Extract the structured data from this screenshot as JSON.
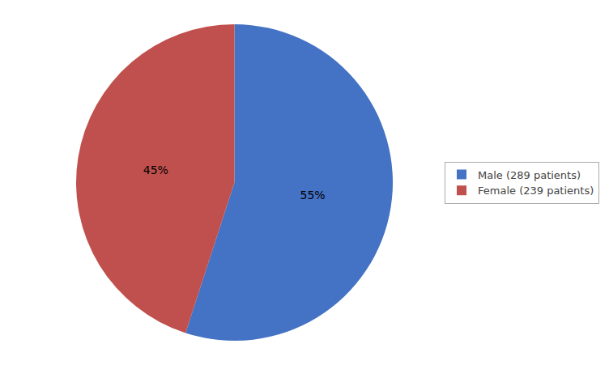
{
  "chart_data": {
    "type": "pie",
    "categories": [
      "Male (289 patients)",
      "Female (239 patients)"
    ],
    "values": [
      55,
      45
    ],
    "value_labels": [
      "55%",
      "45%"
    ],
    "colors": [
      "#4472C4",
      "#C0504D"
    ],
    "data_labels": true,
    "legend": "right"
  }
}
